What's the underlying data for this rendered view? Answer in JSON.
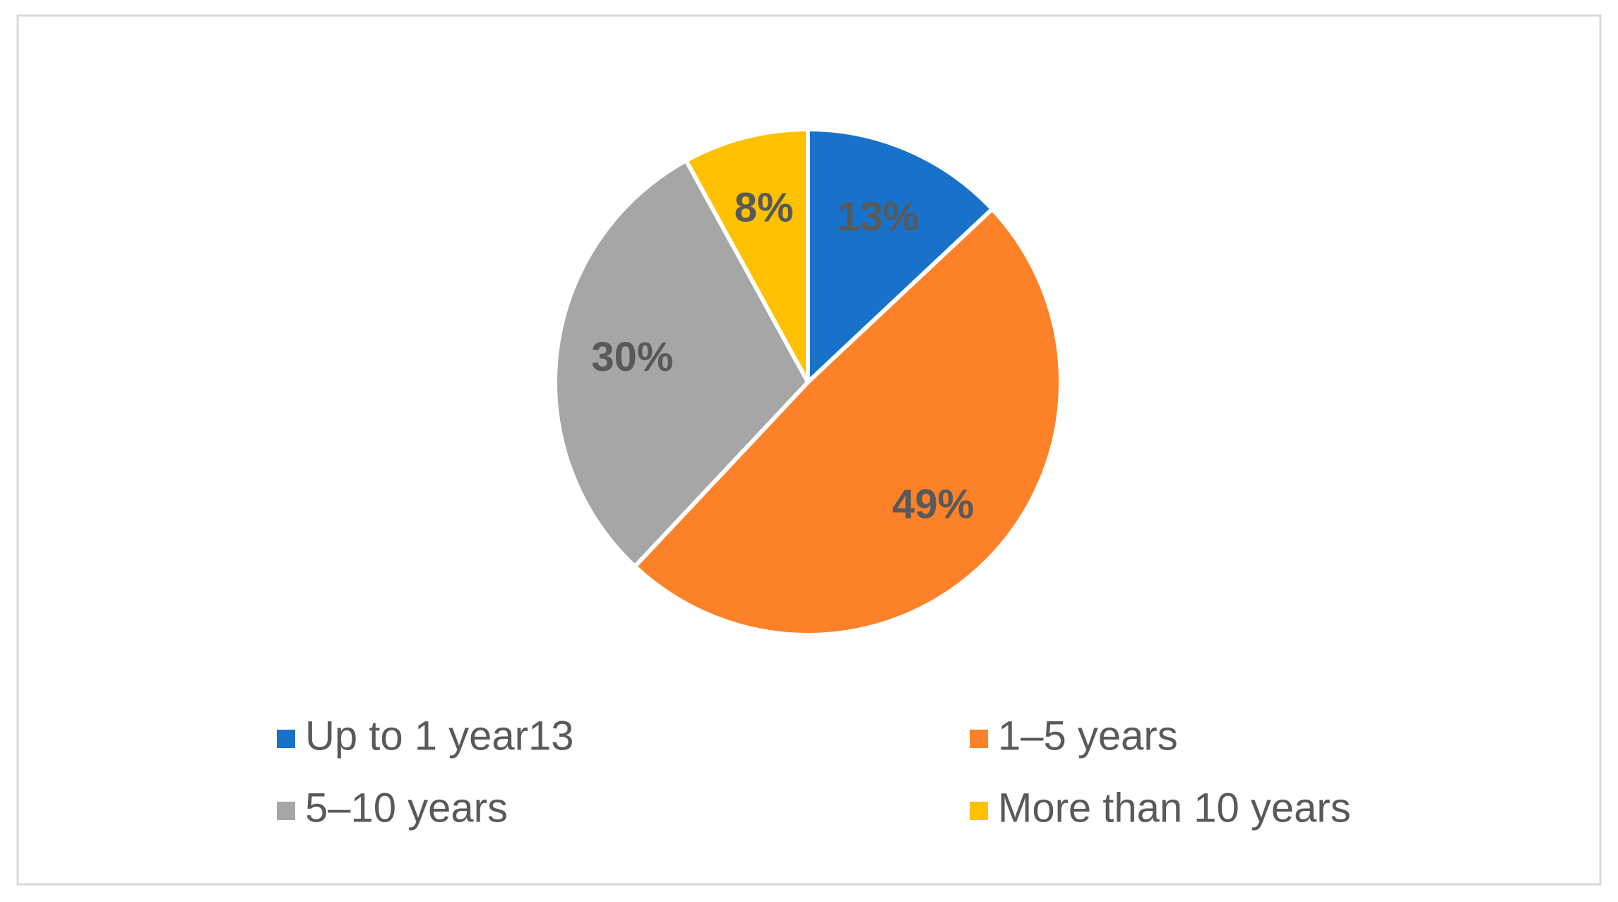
{
  "chart_data": {
    "type": "pie",
    "categories": [
      "Up to 1 year13",
      "1–5 years",
      "5–10 years",
      "More than 10 years"
    ],
    "values": [
      13,
      49,
      30,
      8
    ],
    "value_labels": [
      "13%",
      "49%",
      "30%",
      "8%"
    ],
    "colors": [
      "#1872c9",
      "#fd8128",
      "#a6a6a6",
      "#fec100"
    ],
    "legend": "bottom"
  }
}
